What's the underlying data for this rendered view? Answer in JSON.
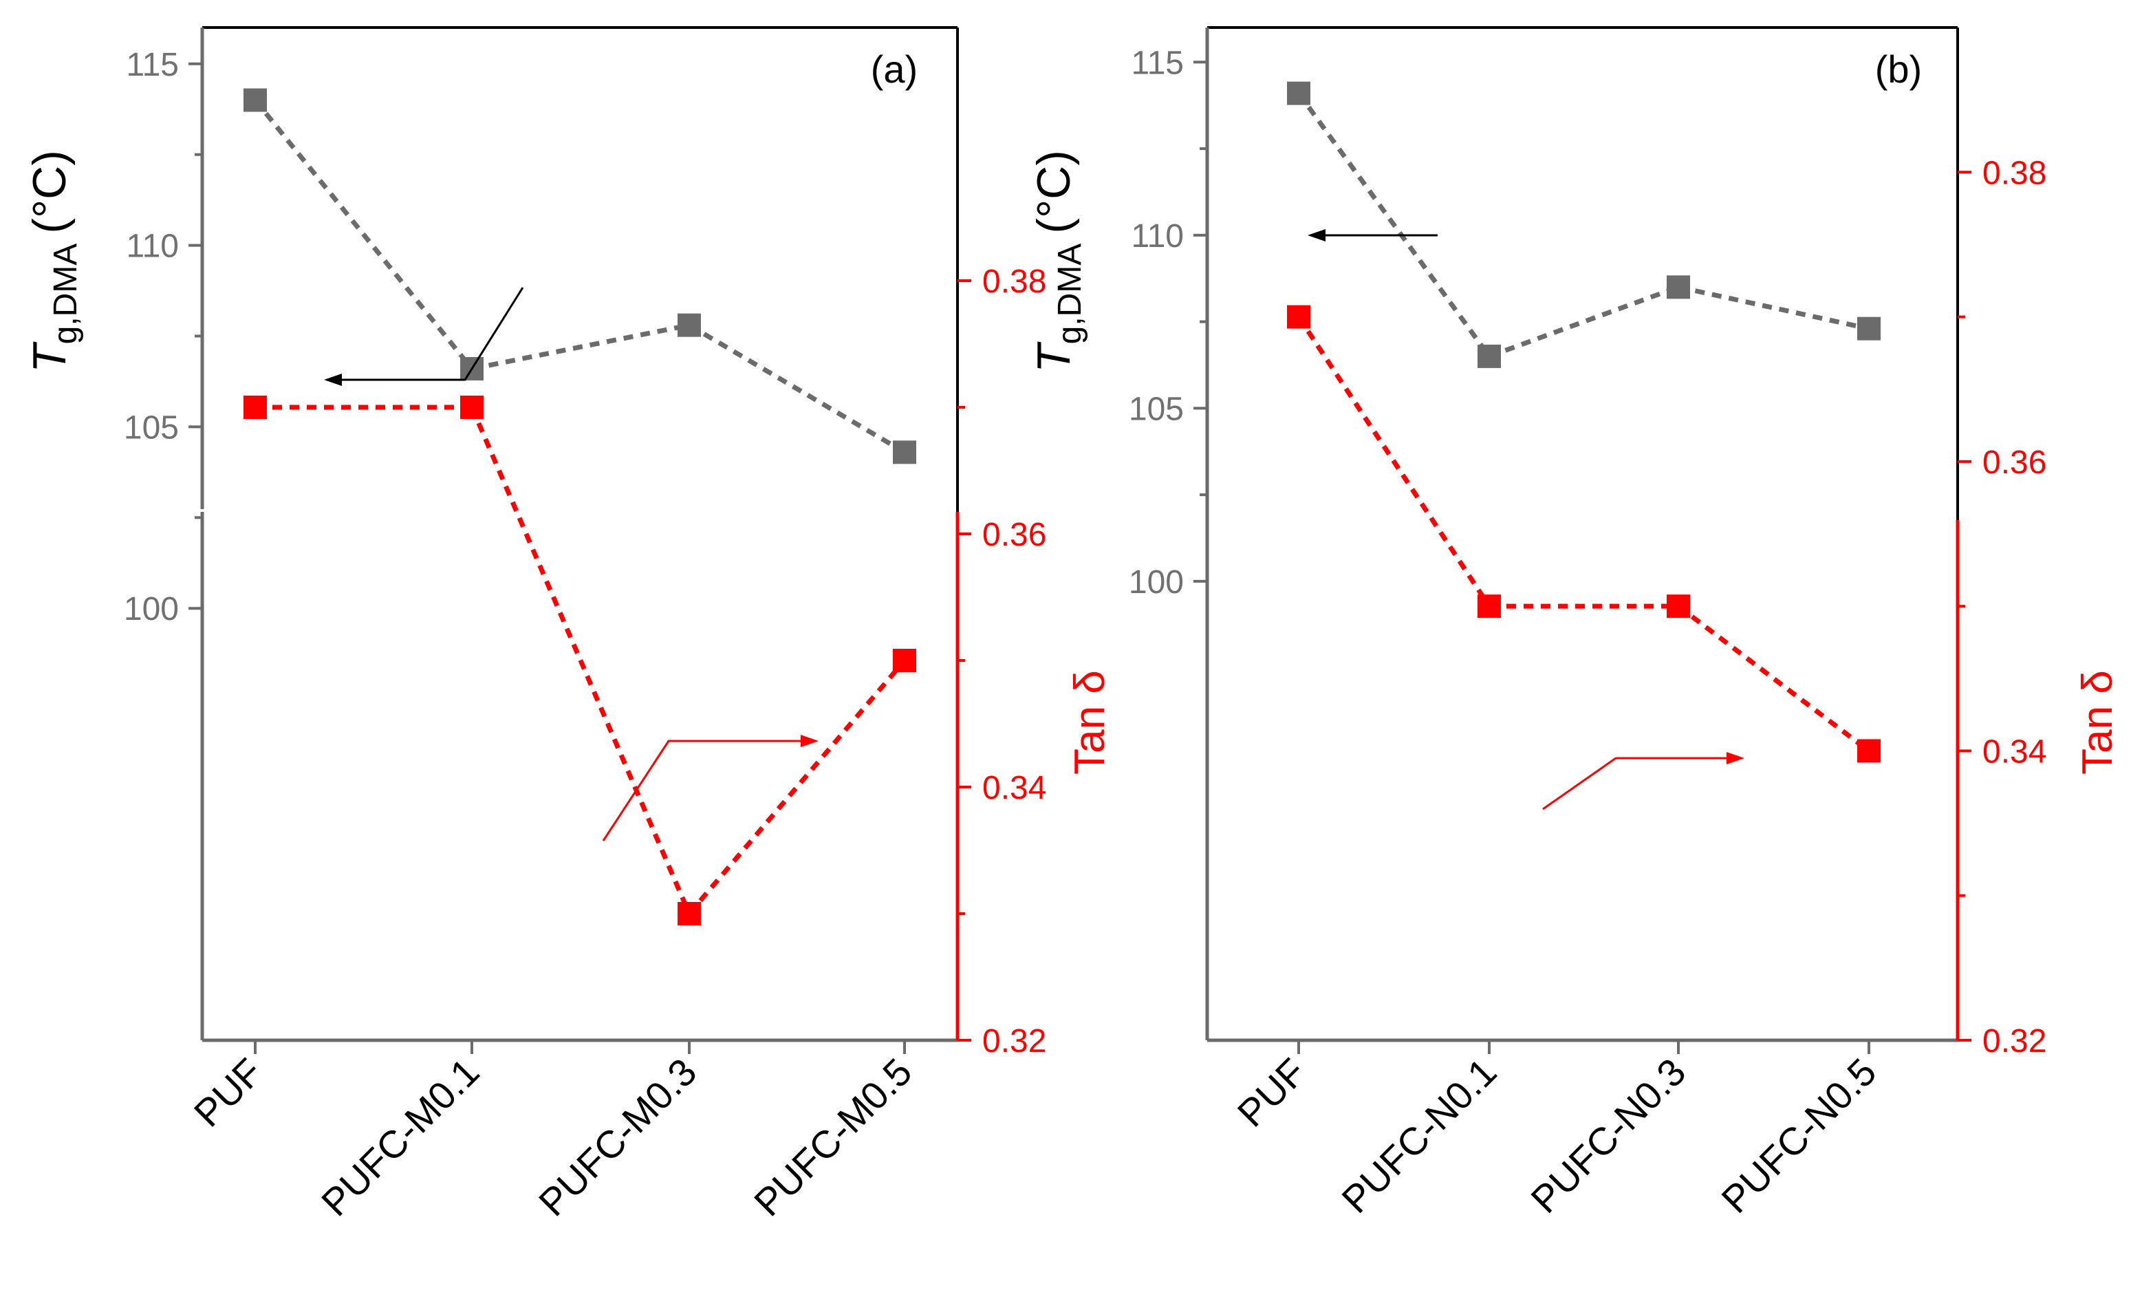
{
  "chart_data": [
    {
      "type": "line",
      "panel_label": "(a)",
      "categories": [
        "PUF",
        "PUFC-M0.1",
        "PUFC-M0.3",
        "PUFC-M0.5"
      ],
      "left_axis": {
        "label_main": "T",
        "label_sub": "g,DMA",
        "label_unit": "(°C)",
        "range": [
          95,
          116
        ],
        "ticks": [
          100,
          105,
          110,
          115
        ],
        "color": "#707070"
      },
      "right_axis": {
        "label": "Tan δ",
        "range": [
          0.32,
          0.4
        ],
        "ticks": [
          0.32,
          0.34,
          0.36,
          0.38
        ],
        "color": "#ff0000"
      },
      "series": [
        {
          "axis": "left",
          "color": "#6b6b6b",
          "values": [
            114.0,
            106.6,
            107.8,
            104.3
          ]
        },
        {
          "axis": "right",
          "color": "#ff0000",
          "values": [
            0.37,
            0.37,
            0.33,
            0.35
          ]
        }
      ]
    },
    {
      "type": "line",
      "panel_label": "(b)",
      "categories": [
        "PUF",
        "PUFC-N0.1",
        "PUFC-N0.3",
        "PUFC-N0.5"
      ],
      "left_axis": {
        "label_main": "T",
        "label_sub": "g,DMA",
        "label_unit": "(°C)",
        "range": [
          93.2,
          116
        ],
        "ticks": [
          100,
          105,
          110,
          115
        ],
        "color": "#707070"
      },
      "right_axis": {
        "label": "Tan δ",
        "range": [
          0.32,
          0.39
        ],
        "ticks": [
          0.32,
          0.34,
          0.36,
          0.38
        ],
        "color": "#ff0000"
      },
      "series": [
        {
          "axis": "left",
          "color": "#6b6b6b",
          "values": [
            114.1,
            106.5,
            108.5,
            107.3
          ]
        },
        {
          "axis": "right",
          "color": "#ff0000",
          "values": [
            0.37,
            0.35,
            0.35,
            0.34
          ]
        }
      ]
    }
  ]
}
